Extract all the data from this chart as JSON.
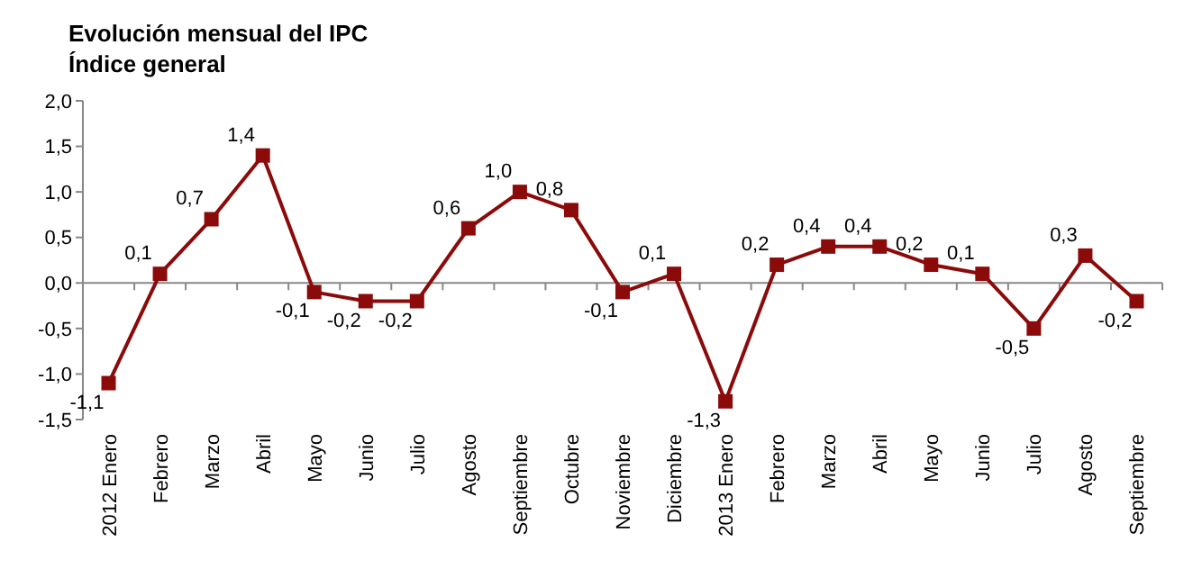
{
  "chart_data": {
    "type": "line",
    "title": "Evolución mensual del IPC",
    "subtitle": "Índice general",
    "categories": [
      "2012 Enero",
      "Febrero",
      "Marzo",
      "Abril",
      "Mayo",
      "Junio",
      "Julio",
      "Agosto",
      "Septiembre",
      "Octubre",
      "Noviembre",
      "Diciembre",
      "2013 Enero",
      "Febrero",
      "Marzo",
      "Abril",
      "Mayo",
      "Junio",
      "Julio",
      "Agosto",
      "Septiembre"
    ],
    "series": [
      {
        "color": "#8b0a0a",
        "values": [
          -1.1,
          0.1,
          0.7,
          1.4,
          -0.1,
          -0.2,
          -0.2,
          0.6,
          1.0,
          0.8,
          -0.1,
          0.1,
          -1.3,
          0.2,
          0.4,
          0.4,
          0.2,
          0.1,
          -0.5,
          0.3,
          -0.2
        ],
        "value_labels": [
          "-1,1",
          "0,1",
          "0,7",
          "1,4",
          "-0,1",
          "-0,2",
          "-0,2",
          "0,6",
          "1,0",
          "0,8",
          "-0,1",
          "0,1",
          "-1,3",
          "0,2",
          "0,4",
          "0,4",
          "0,2",
          "0,1",
          "-0,5",
          "0,3",
          "-0,2"
        ]
      }
    ],
    "ylim": [
      -1.5,
      2.0
    ],
    "yticks": [
      {
        "value": -1.5,
        "label": "-1,5"
      },
      {
        "value": -1.0,
        "label": "-1,0"
      },
      {
        "value": -0.5,
        "label": "-0,5"
      },
      {
        "value": 0,
        "label": "0,0"
      },
      {
        "value": 0.5,
        "label": "0,5"
      },
      {
        "value": 1.0,
        "label": "1,0"
      },
      {
        "value": 1.5,
        "label": "1,5"
      },
      {
        "value": 2.0,
        "label": "2,0"
      }
    ],
    "marker": "square",
    "line_style": "solid"
  }
}
